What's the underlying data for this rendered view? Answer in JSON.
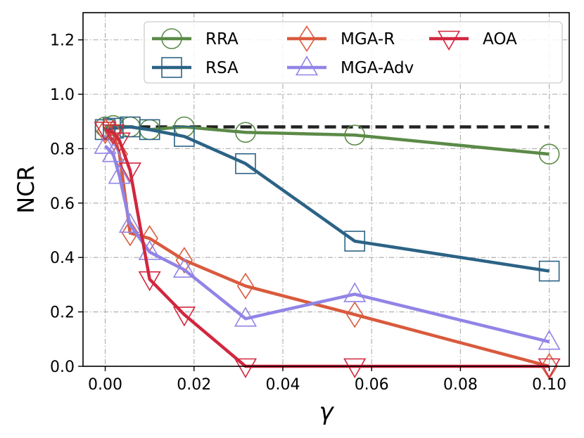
{
  "chart_data": {
    "type": "line",
    "title": "",
    "xlabel": "γ",
    "ylabel": "NCR",
    "xlim": [
      -0.005,
      0.1045
    ],
    "ylim": [
      0.0,
      1.3
    ],
    "xticks": [
      0.0,
      0.02,
      0.04,
      0.06,
      0.08,
      0.1
    ],
    "xtick_labels": [
      "0.00",
      "0.02",
      "0.04",
      "0.06",
      "0.08",
      "0.10"
    ],
    "yticks": [
      0.0,
      0.2,
      0.4,
      0.6,
      0.8,
      1.0,
      1.2
    ],
    "ytick_labels": [
      "0.0",
      "0.2",
      "0.4",
      "0.6",
      "0.8",
      "1.0",
      "1.2"
    ],
    "grid": true,
    "legend_position": "top-right",
    "reference_line": {
      "y": 0.88,
      "x_range": [
        0.0,
        0.1
      ],
      "style": "dashed",
      "color": "#222222"
    },
    "series": [
      {
        "name": "RRA",
        "color": "#5b8a47",
        "marker": "circle",
        "x": [
          0.0,
          0.0018,
          0.0056,
          0.01,
          0.0178,
          0.0316,
          0.0562,
          0.1
        ],
        "y": [
          0.88,
          0.885,
          0.88,
          0.87,
          0.88,
          0.86,
          0.85,
          0.78
        ]
      },
      {
        "name": "RSA",
        "color": "#2b6385",
        "marker": "square",
        "x": [
          0.0,
          0.0018,
          0.0056,
          0.01,
          0.0178,
          0.0316,
          0.0562,
          0.1
        ],
        "y": [
          0.87,
          0.875,
          0.88,
          0.87,
          0.845,
          0.745,
          0.46,
          0.35
        ]
      },
      {
        "name": "MGA-R",
        "color": "#d95a3d",
        "marker": "diamond",
        "x": [
          0.0,
          0.0018,
          0.0032,
          0.0056,
          0.01,
          0.0178,
          0.0316,
          0.0562,
          0.1
        ],
        "y": [
          0.865,
          0.86,
          0.78,
          0.49,
          0.47,
          0.39,
          0.295,
          0.19,
          0.0
        ]
      },
      {
        "name": "MGA-Adv",
        "color": "#9184e6",
        "marker": "triangle-up",
        "x": [
          0.0,
          0.0018,
          0.0032,
          0.0056,
          0.01,
          0.0178,
          0.0316,
          0.0562,
          0.1
        ],
        "y": [
          0.81,
          0.78,
          0.7,
          0.52,
          0.42,
          0.355,
          0.175,
          0.265,
          0.09
        ]
      },
      {
        "name": "AOA",
        "color": "#d1273f",
        "marker": "triangle-down",
        "x": [
          0.0,
          0.0018,
          0.0032,
          0.0056,
          0.01,
          0.0178,
          0.0316,
          0.0562,
          0.1
        ],
        "y": [
          0.87,
          0.86,
          0.83,
          0.72,
          0.32,
          0.19,
          0.0,
          0.0,
          0.0
        ]
      }
    ]
  }
}
